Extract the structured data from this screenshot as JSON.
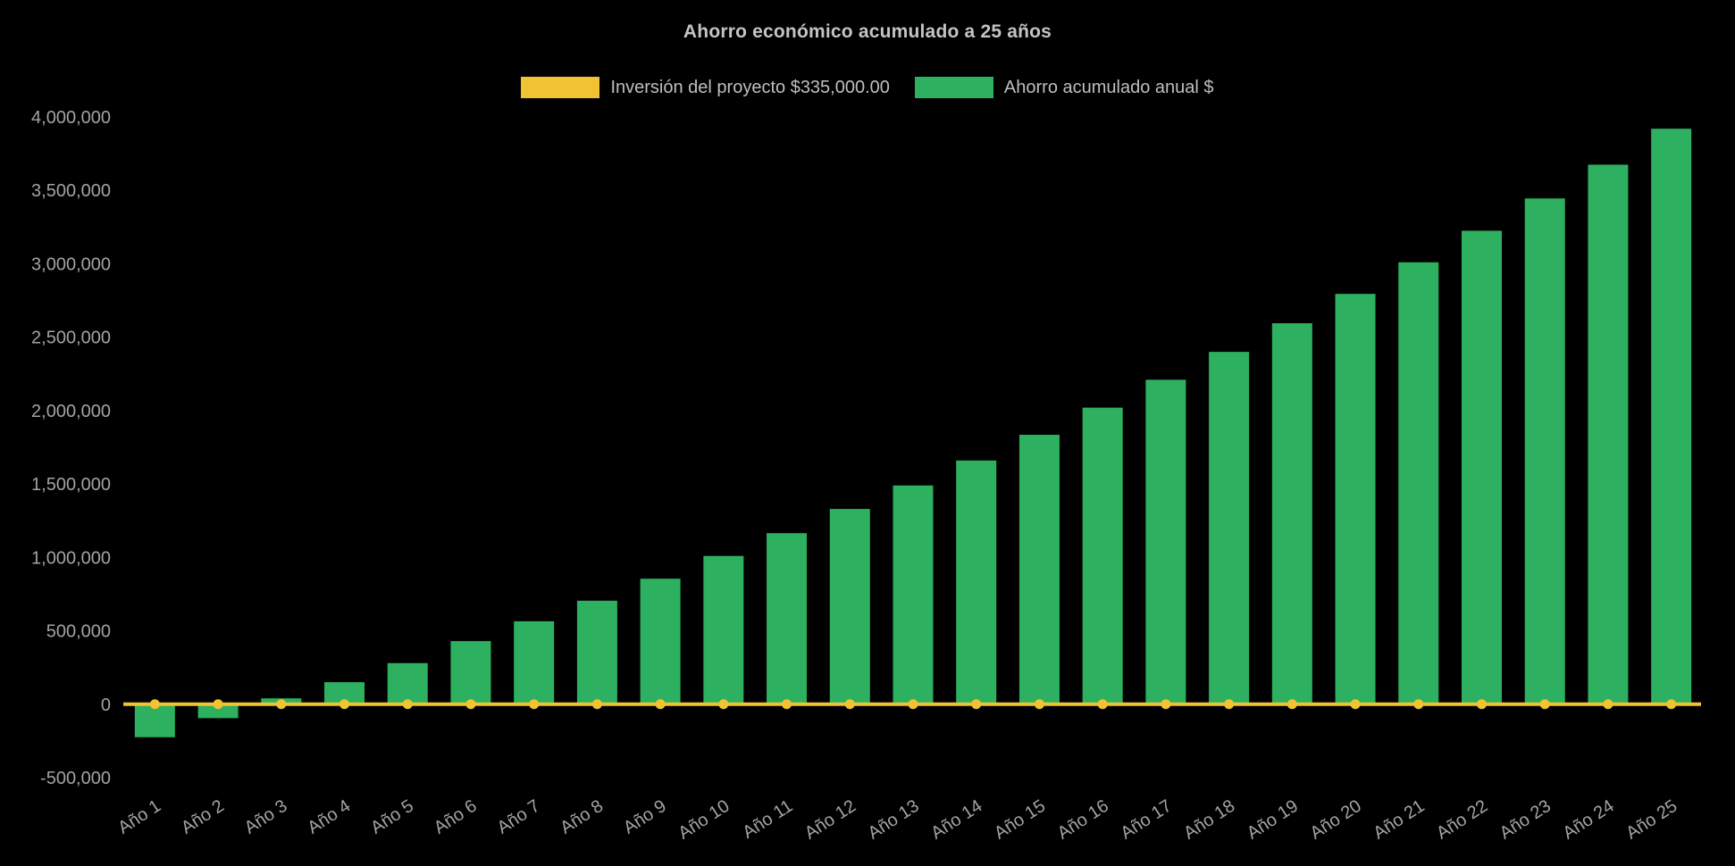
{
  "chart_data": {
    "type": "bar",
    "title": "Ahorro económico acumulado a 25 años",
    "categories": [
      "Año 1",
      "Año 2",
      "Año 3",
      "Año 4",
      "Año 5",
      "Año 6",
      "Año 7",
      "Año 8",
      "Año 9",
      "Año 10",
      "Año 11",
      "Año 12",
      "Año 13",
      "Año 14",
      "Año 15",
      "Año 16",
      "Año 17",
      "Año 18",
      "Año 19",
      "Año 20",
      "Año 21",
      "Año 22",
      "Año 23",
      "Año 24",
      "Año 25"
    ],
    "series": [
      {
        "name": "Inversión del proyecto $335,000.00",
        "type": "line",
        "color": "#F1C232",
        "values": [
          0,
          0,
          0,
          0,
          0,
          0,
          0,
          0,
          0,
          0,
          0,
          0,
          0,
          0,
          0,
          0,
          0,
          0,
          0,
          0,
          0,
          0,
          0,
          0,
          0
        ]
      },
      {
        "name": "Ahorro acumulado anual $",
        "type": "bar",
        "color": "#2DB05F",
        "values": [
          -225000,
          -95000,
          40000,
          150000,
          280000,
          430000,
          565000,
          705000,
          855000,
          1010000,
          1165000,
          1330000,
          1490000,
          1660000,
          1835000,
          2020000,
          2210000,
          2400000,
          2595000,
          2795000,
          3010000,
          3225000,
          3445000,
          3675000,
          3920000
        ]
      }
    ],
    "ylim": [
      -500000,
      4000000
    ],
    "y_ticks": [
      -500000,
      0,
      500000,
      1000000,
      1500000,
      2000000,
      2500000,
      3000000,
      3500000,
      4000000
    ],
    "y_tick_labels": [
      "-500,000",
      "0",
      "500,000",
      "1,000,000",
      "1,500,000",
      "2,000,000",
      "2,500,000",
      "3,000,000",
      "3,500,000",
      "4,000,000"
    ],
    "grid": false,
    "legend_position": "top",
    "xlabel": "",
    "ylabel": "",
    "colors": {
      "background": "#000000",
      "title_text": "#c4c4c4",
      "legend_text": "#bfbfbf",
      "axis_text": "#a3a3a3"
    }
  }
}
